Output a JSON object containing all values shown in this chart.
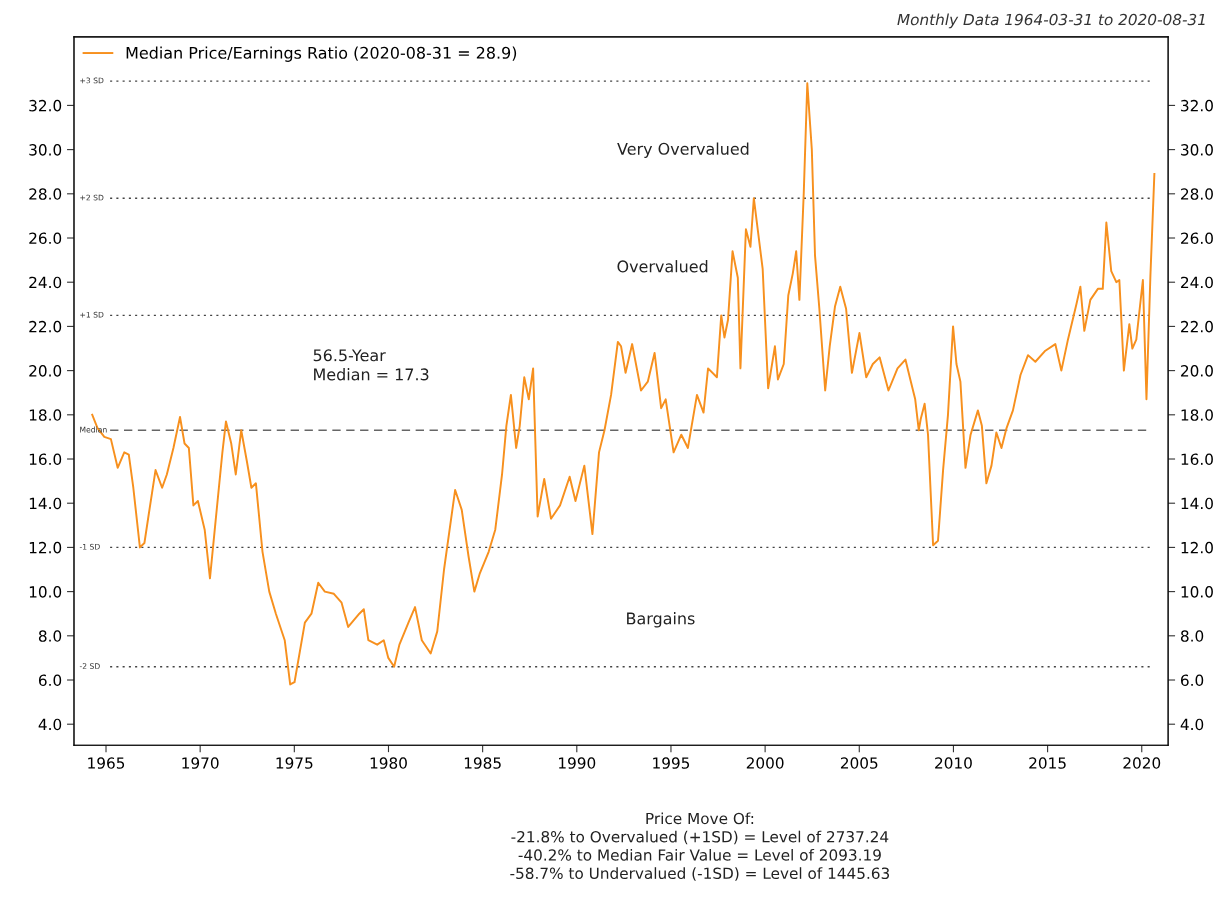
{
  "chart_data": {
    "type": "line",
    "legend": "top left",
    "grid": false,
    "line_style": "solid",
    "marker": "none",
    "xlim": [
      1963.3,
      2021.4
    ],
    "xticks": [
      1965,
      1970,
      1975,
      1980,
      1985,
      1990,
      1995,
      2000,
      2005,
      2010,
      2015,
      2020
    ],
    "ylim": [
      3.05,
      35.1
    ],
    "yticks": [
      {
        "value": 4,
        "label": "4.0"
      },
      {
        "value": 6,
        "label": "6.0"
      },
      {
        "value": 8,
        "label": "8.0"
      },
      {
        "value": 10,
        "label": "10.0"
      },
      {
        "value": 12,
        "label": "12.0"
      },
      {
        "value": 14,
        "label": "14.0"
      },
      {
        "value": 16,
        "label": "16.0"
      },
      {
        "value": 18,
        "label": "18.0"
      },
      {
        "value": 20,
        "label": "20.0"
      },
      {
        "value": 22,
        "label": "22.0"
      },
      {
        "value": 24,
        "label": "24.0"
      },
      {
        "value": 26,
        "label": "26.0"
      },
      {
        "value": 28,
        "label": "28.0"
      },
      {
        "value": 30,
        "label": "30.0"
      },
      {
        "value": 32,
        "label": "32.0"
      }
    ],
    "y2lim": [
      3.05,
      35.1
    ],
    "y2ticks": [
      {
        "value": 4,
        "label": "4.0"
      },
      {
        "value": 6,
        "label": "6.0"
      },
      {
        "value": 8,
        "label": "8.0"
      },
      {
        "value": 10,
        "label": "10.0"
      },
      {
        "value": 12,
        "label": "12.0"
      },
      {
        "value": 14,
        "label": "14.0"
      },
      {
        "value": 16,
        "label": "16.0"
      },
      {
        "value": 18,
        "label": "18.0"
      },
      {
        "value": 20,
        "label": "20.0"
      },
      {
        "value": 22,
        "label": "22.0"
      },
      {
        "value": 24,
        "label": "24.0"
      },
      {
        "value": 26,
        "label": "26.0"
      },
      {
        "value": 28,
        "label": "28.0"
      },
      {
        "value": 30,
        "label": "30.0"
      },
      {
        "value": 32,
        "label": "32.0"
      }
    ],
    "ref_lines": [
      {
        "axis": "y",
        "value": 33.1,
        "label": "+3 SD",
        "line_style": "dotted",
        "color": "#444444"
      },
      {
        "axis": "y",
        "value": 27.8,
        "label": "+2 SD",
        "line_style": "dotted",
        "color": "#444444"
      },
      {
        "axis": "y",
        "value": 22.5,
        "label": "+1 SD",
        "line_style": "dotted",
        "color": "#444444"
      },
      {
        "axis": "y",
        "value": 17.3,
        "label": "Median",
        "line_style": "dashed",
        "color": "#666666"
      },
      {
        "axis": "y",
        "value": 12.0,
        "label": "-1 SD",
        "line_style": "dotted",
        "color": "#444444"
      },
      {
        "axis": "y",
        "value": 6.6,
        "label": "-2 SD",
        "line_style": "dotted",
        "color": "#444444"
      }
    ],
    "annotations": [
      "Monthly Data 1964-03-31 to 2020-08-31",
      "56.5-Year\nMedian = 17.3",
      "Very Overvalued",
      "Overvalued",
      "Bargains",
      "Price Move Of:\n-21.8% to Overvalued (+1SD) = Level of 2737.24\n-40.2% to Median Fair Value = Level of 2093.19\n-58.7% to Undervalued (-1SD) = Level of 1445.63"
    ],
    "series": [
      {
        "name": "Median Price/Earnings Ratio (2020-08-31 = 28.9)",
        "color": "#f7901e",
        "x": [
          1964.27,
          1964.55,
          1964.91,
          1965.26,
          1965.62,
          1965.97,
          1966.21,
          1966.45,
          1966.8,
          1967.04,
          1967.27,
          1967.63,
          1967.98,
          1968.23,
          1968.58,
          1968.93,
          1969.17,
          1969.4,
          1969.64,
          1969.88,
          1970.24,
          1970.52,
          1970.82,
          1971.18,
          1971.37,
          1971.65,
          1971.89,
          1972.18,
          1972.48,
          1972.72,
          1972.96,
          1973.31,
          1973.67,
          1974.02,
          1974.49,
          1974.78,
          1975.01,
          1975.56,
          1975.91,
          1976.27,
          1976.62,
          1977.1,
          1977.51,
          1977.86,
          1978.45,
          1978.69,
          1978.93,
          1979.4,
          1979.75,
          1979.99,
          1980.3,
          1980.58,
          1981.06,
          1981.41,
          1981.77,
          1982.24,
          1982.59,
          1982.95,
          1983.54,
          1983.89,
          1984.25,
          1984.56,
          1984.84,
          1985.32,
          1985.67,
          1986.03,
          1986.26,
          1986.5,
          1986.78,
          1986.97,
          1987.21,
          1987.45,
          1987.68,
          1987.92,
          1988.27,
          1988.63,
          1989.11,
          1989.62,
          1989.93,
          1990.4,
          1990.83,
          1991.18,
          1991.47,
          1991.82,
          1992.18,
          1992.35,
          1992.59,
          1992.94,
          1993.41,
          1993.77,
          1994.13,
          1994.48,
          1994.72,
          1995.14,
          1995.55,
          1995.9,
          1996.38,
          1996.73,
          1996.97,
          1997.44,
          1997.67,
          1997.84,
          1998.03,
          1998.27,
          1998.55,
          1998.69,
          1998.98,
          1999.22,
          1999.4,
          1999.87,
          2000.16,
          2000.52,
          2000.68,
          2000.99,
          2001.23,
          2001.47,
          2001.65,
          2001.82,
          2002.05,
          2002.24,
          2002.48,
          2002.65,
          2002.88,
          2003.19,
          2003.43,
          2003.71,
          2003.99,
          2004.3,
          2004.61,
          2005.01,
          2005.37,
          2005.72,
          2006.08,
          2006.55,
          2007.03,
          2007.45,
          2007.74,
          2007.97,
          2008.16,
          2008.26,
          2008.47,
          2008.65,
          2008.92,
          2009.18,
          2009.45,
          2009.71,
          2009.98,
          2010.16,
          2010.37,
          2010.64,
          2010.91,
          2011.3,
          2011.51,
          2011.75,
          2012.02,
          2012.28,
          2012.55,
          2012.82,
          2013.16,
          2013.56,
          2013.96,
          2014.35,
          2014.88,
          2015.41,
          2015.73,
          2016.08,
          2016.53,
          2016.74,
          2016.95,
          2017.27,
          2017.67,
          2017.93,
          2018.12,
          2018.38,
          2018.65,
          2018.81,
          2019.05,
          2019.34,
          2019.5,
          2019.71,
          2020.06,
          2020.25,
          2020.46,
          2020.67
        ],
        "values": [
          18.0,
          17.4,
          17.0,
          16.9,
          15.6,
          16.3,
          16.2,
          14.7,
          12.0,
          12.2,
          13.5,
          15.5,
          14.7,
          15.3,
          16.5,
          17.9,
          16.7,
          16.5,
          13.9,
          14.1,
          12.8,
          10.6,
          13.2,
          16.3,
          17.7,
          16.7,
          15.3,
          17.3,
          15.9,
          14.7,
          14.9,
          11.8,
          10.0,
          9.0,
          7.8,
          5.8,
          5.9,
          8.6,
          9.0,
          10.4,
          10.0,
          9.9,
          9.5,
          8.4,
          9.0,
          9.2,
          7.8,
          7.6,
          7.8,
          7.0,
          6.6,
          7.6,
          8.6,
          9.3,
          7.8,
          7.2,
          8.2,
          11.0,
          14.6,
          13.7,
          11.6,
          10.0,
          10.8,
          11.8,
          12.8,
          15.3,
          17.5,
          18.9,
          16.5,
          17.5,
          19.7,
          18.7,
          20.1,
          13.4,
          15.1,
          13.3,
          13.9,
          15.2,
          14.1,
          15.7,
          12.6,
          16.3,
          17.3,
          18.9,
          21.3,
          21.1,
          19.9,
          21.2,
          19.1,
          19.5,
          20.8,
          18.3,
          18.7,
          16.3,
          17.1,
          16.5,
          18.9,
          18.1,
          20.1,
          19.7,
          22.5,
          21.5,
          22.3,
          25.4,
          24.2,
          20.1,
          26.4,
          25.6,
          27.8,
          24.6,
          19.2,
          21.1,
          19.6,
          20.3,
          23.4,
          24.4,
          25.4,
          23.2,
          28.0,
          33.0,
          30.0,
          25.2,
          22.8,
          19.1,
          21.1,
          22.9,
          23.8,
          22.8,
          19.9,
          21.7,
          19.7,
          20.3,
          20.6,
          19.1,
          20.1,
          20.5,
          19.5,
          18.7,
          17.3,
          17.8,
          18.5,
          17.1,
          12.1,
          12.3,
          15.5,
          18.0,
          22.0,
          20.3,
          19.5,
          15.6,
          17.1,
          18.2,
          17.5,
          14.9,
          15.7,
          17.2,
          16.5,
          17.4,
          18.2,
          19.8,
          20.7,
          20.4,
          20.9,
          21.2,
          20.0,
          21.4,
          23.0,
          23.8,
          21.8,
          23.2,
          23.7,
          23.7,
          26.7,
          24.5,
          24.0,
          24.1,
          20.0,
          22.1,
          21.0,
          21.4,
          24.1,
          18.7,
          24.3,
          28.9
        ]
      }
    ]
  }
}
